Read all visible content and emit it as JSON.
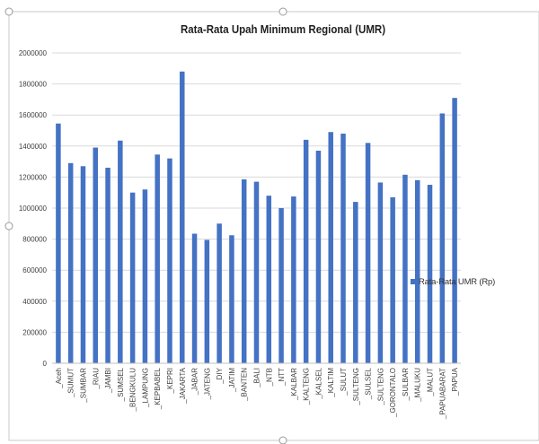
{
  "chart_data": {
    "type": "bar",
    "title": "Rata-Rata Upah Minimum Regional (UMR)",
    "xlabel": "",
    "ylabel": "",
    "ylim": [
      0,
      2000000
    ],
    "yticks": [
      "0",
      "200000",
      "400000",
      "600000",
      "800000",
      "1000000",
      "1200000",
      "1400000",
      "1600000",
      "1800000",
      "2000000"
    ],
    "grid": true,
    "legend_position": "right",
    "bar_color": "#4472c4",
    "categories": [
      "_Aceh",
      "_SUMUT",
      "_SUMBAR",
      "_RIAU",
      "_JAMBI",
      "_SUMSEL",
      "_BENGKULU",
      "_LAMPUNG",
      "_KEPBABEL",
      "_KEPRI",
      "_JAKARTA",
      "_JABAR",
      "_JATENG",
      "_DIY",
      "_JATIM",
      "_BANTEN",
      "_BALI",
      "_NTB",
      "_NTT",
      "_KALBAR",
      "_KALTENG",
      "_KALSEL",
      "_KALTIM",
      "_SULUT",
      "_SULTENG",
      "_SULSEL",
      "_SULTENG",
      "_GORONTALO",
      "_SULBAR",
      "_MALUKU",
      "_MALUT",
      "_PAPUABARAT",
      "_PAPUA"
    ],
    "series": [
      {
        "name": "Rata-Rata UMR (Rp)",
        "values": [
          1545000,
          1290000,
          1270000,
          1390000,
          1260000,
          1435000,
          1100000,
          1120000,
          1345000,
          1320000,
          1880000,
          835000,
          795000,
          900000,
          825000,
          1185000,
          1170000,
          1080000,
          1000000,
          1075000,
          1440000,
          1370000,
          1490000,
          1480000,
          1040000,
          1420000,
          1165000,
          1070000,
          1215000,
          1180000,
          1150000,
          1610000,
          1710000
        ]
      }
    ]
  }
}
